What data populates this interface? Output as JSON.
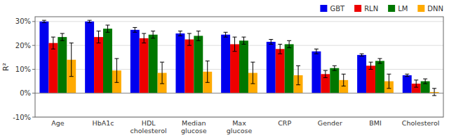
{
  "chart_data": {
    "type": "bar",
    "categories": [
      "Age",
      "HbA1c",
      "HDL\ncholesterol",
      "Median\nglucose",
      "Max\nglucose",
      "CRP",
      "Gender",
      "BMI",
      "Cholesterol"
    ],
    "series": [
      {
        "name": "GBT",
        "color": "#0000ee",
        "values": [
          30.0,
          30.0,
          26.5,
          25.0,
          24.5,
          21.5,
          17.5,
          16.0,
          7.5
        ],
        "errors": [
          0.5,
          0.5,
          1.0,
          1.0,
          1.0,
          1.0,
          1.0,
          0.5,
          0.5
        ]
      },
      {
        "name": "RLN",
        "color": "#ee0000",
        "values": [
          21.0,
          23.5,
          23.0,
          22.5,
          20.5,
          18.5,
          8.0,
          11.5,
          4.0
        ],
        "errors": [
          2.5,
          2.5,
          2.0,
          2.5,
          3.0,
          2.0,
          1.5,
          1.5,
          1.5
        ]
      },
      {
        "name": "LM",
        "color": "#007700",
        "values": [
          23.5,
          27.0,
          24.5,
          24.0,
          22.0,
          20.5,
          10.5,
          13.5,
          5.0
        ],
        "errors": [
          1.5,
          1.5,
          1.5,
          2.0,
          1.5,
          1.5,
          1.0,
          1.0,
          1.0
        ]
      },
      {
        "name": "DNN",
        "color": "#ffaa00",
        "values": [
          14.0,
          9.5,
          8.5,
          9.0,
          8.5,
          7.5,
          5.5,
          5.0,
          0.5
        ],
        "errors": [
          7.0,
          5.0,
          4.5,
          4.5,
          4.5,
          4.0,
          2.5,
          3.0,
          1.5
        ]
      }
    ],
    "ylabel": "R²",
    "ylim": [
      -10,
      32
    ],
    "yticks": [
      {
        "value": -10,
        "label": "-10%"
      },
      {
        "value": 0,
        "label": "0%"
      },
      {
        "value": 10,
        "label": "10%"
      },
      {
        "value": 20,
        "label": "20%"
      },
      {
        "value": 30,
        "label": "30%"
      }
    ],
    "grid": true,
    "legend": "upper right"
  }
}
